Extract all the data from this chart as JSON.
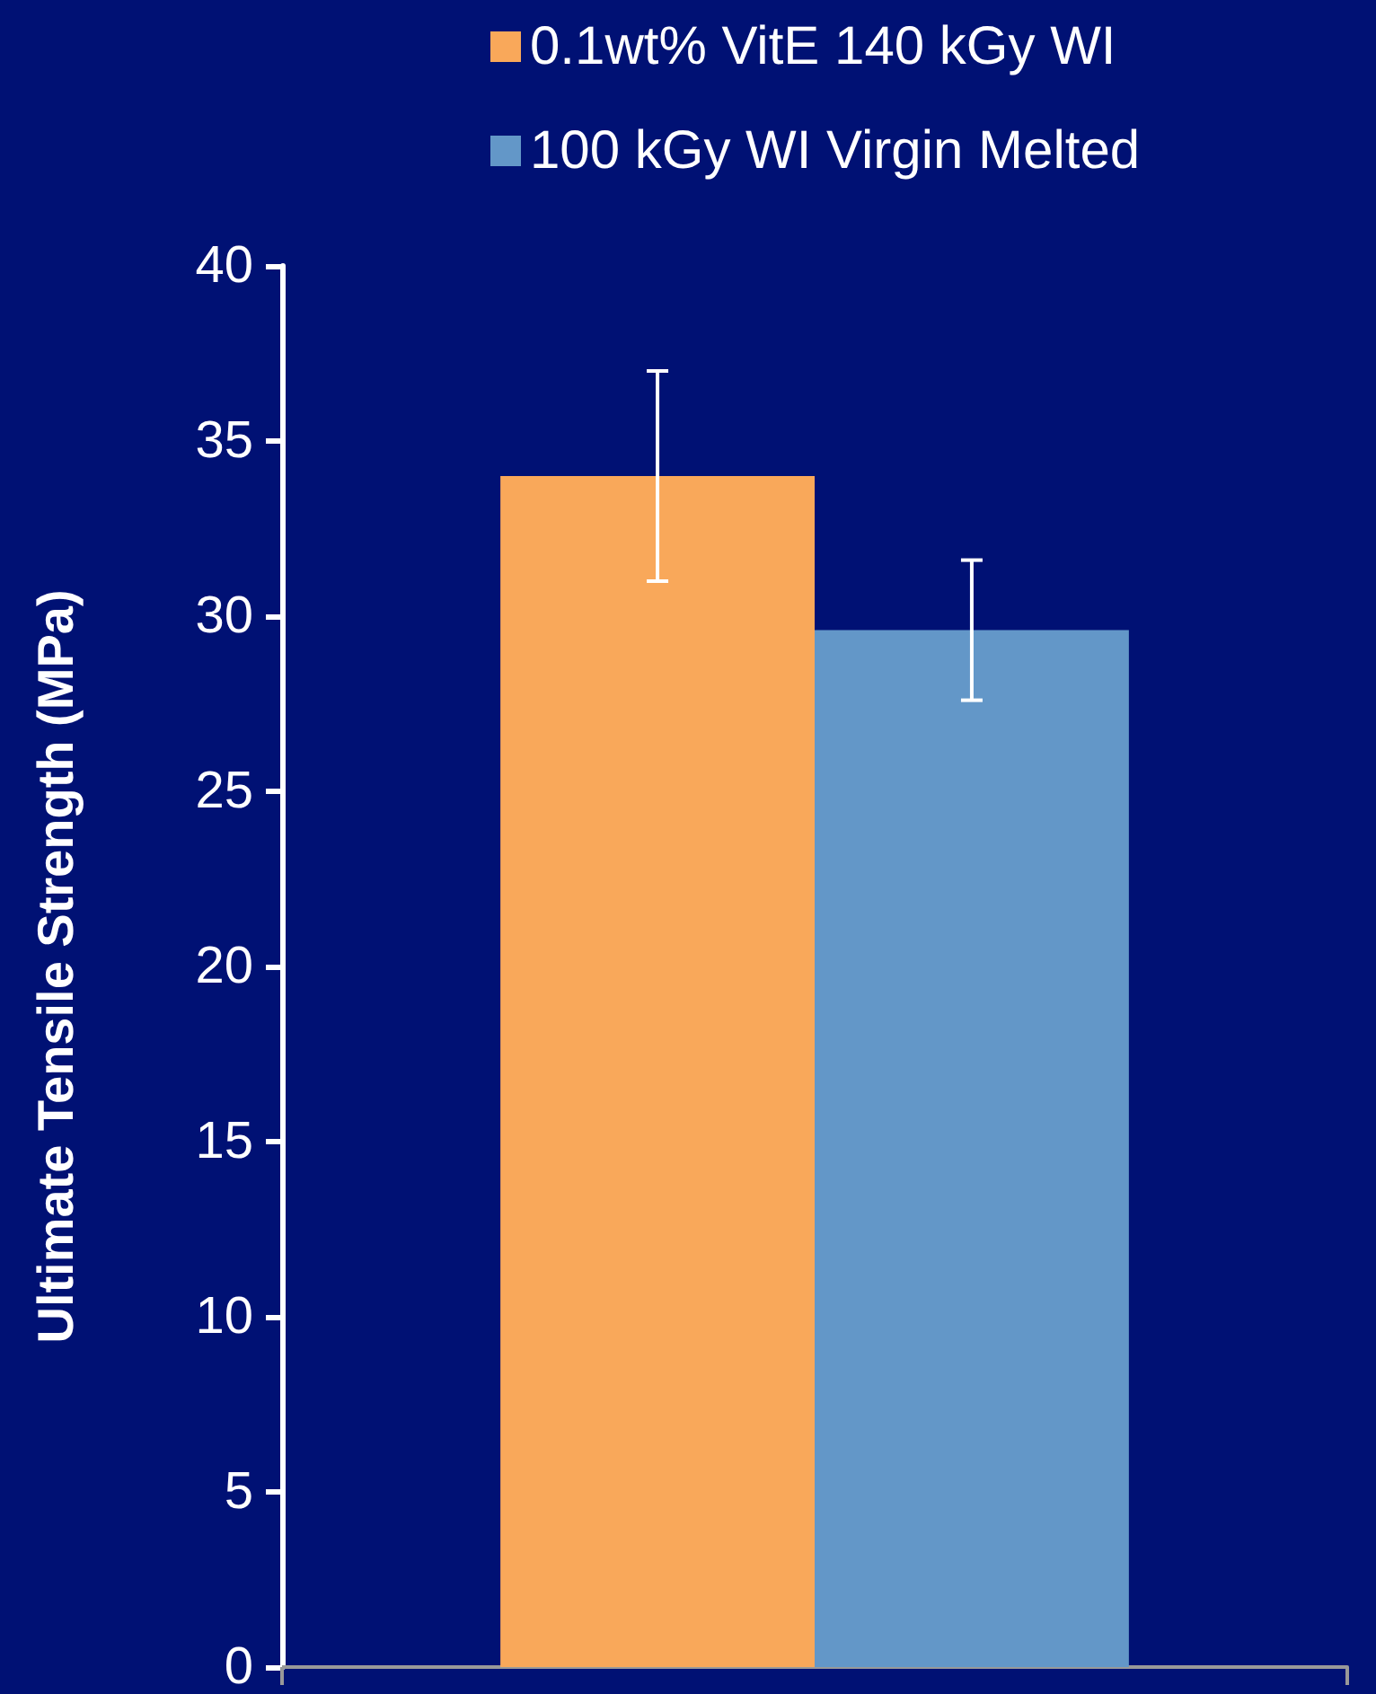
{
  "chart_data": {
    "type": "bar",
    "ylabel": "Ultimate Tensile Strength (MPa)",
    "categories": [
      null
    ],
    "series": [
      {
        "name": "0.1wt% VitE 140 kGy WI",
        "color": "#f9a85a",
        "values": [
          34.0
        ],
        "errors": [
          3.0
        ]
      },
      {
        "name": "100 kGy WI Virgin Melted",
        "color": "#6397c8",
        "values": [
          29.6
        ],
        "errors": [
          2.0
        ]
      }
    ],
    "ylim": [
      0,
      40
    ],
    "yticks": [
      0,
      5,
      10,
      15,
      20,
      25,
      30,
      35,
      40
    ],
    "grid": false,
    "legend": "top"
  }
}
